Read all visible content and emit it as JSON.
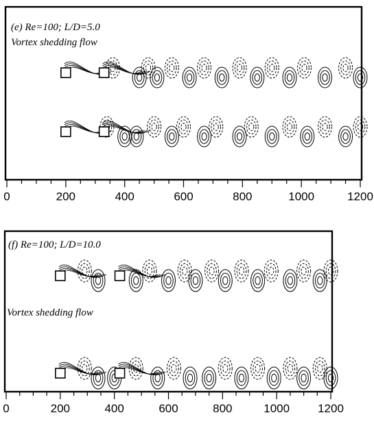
{
  "panels": [
    {
      "id": "e",
      "title": "(e)  Re=100; L/D=5.0",
      "annotation": "Vortex shedding flow",
      "axis": {
        "xlim": [
          0,
          1200
        ],
        "major_ticks": [
          0,
          200,
          400,
          600,
          800,
          1000,
          1200
        ],
        "minor_step": 50
      },
      "cylinders_x": [
        200,
        330
      ],
      "wake_vortices": [
        {
          "row": "upper",
          "x": [
            360,
            450,
            480,
            510,
            560,
            620,
            670,
            730,
            790,
            850,
            900,
            960,
            1010,
            1080,
            1150,
            1200
          ],
          "sign": [
            "-",
            "+",
            "-",
            "+",
            "-",
            "+",
            "-",
            "+",
            "-",
            "+",
            "-",
            "+",
            "-",
            "+",
            "-",
            "+"
          ]
        },
        {
          "row": "lower",
          "x": [
            340,
            400,
            440,
            500,
            560,
            600,
            670,
            710,
            790,
            830,
            900,
            960,
            1020,
            1080,
            1150,
            1200
          ],
          "sign": [
            "-",
            "+",
            "+",
            "-",
            "+",
            "-",
            "+",
            "-",
            "+",
            "-",
            "+",
            "-",
            "+",
            "-",
            "+",
            "-"
          ]
        }
      ]
    },
    {
      "id": "f",
      "title": "(f) Re=100; L/D=10.0",
      "annotation": "Vortex shedding flow",
      "axis": {
        "xlim": [
          0,
          1200
        ],
        "major_ticks": [
          0,
          200,
          400,
          600,
          800,
          1000,
          1200
        ],
        "minor_step": 50
      },
      "cylinders_x": [
        200,
        420
      ],
      "wake_vortices": [
        {
          "row": "upper",
          "x": [
            290,
            340,
            480,
            530,
            600,
            660,
            700,
            760,
            810,
            870,
            930,
            980,
            1050,
            1100,
            1160,
            1200
          ],
          "sign": [
            "-",
            "+",
            "+",
            "-",
            "+",
            "-",
            "+",
            "-",
            "+",
            "-",
            "+",
            "-",
            "+",
            "-",
            "+",
            "-"
          ]
        },
        {
          "row": "lower",
          "x": [
            290,
            340,
            400,
            480,
            560,
            620,
            680,
            750,
            810,
            870,
            930,
            990,
            1050,
            1100,
            1160,
            1200
          ],
          "sign": [
            "-",
            "+",
            "+",
            "-",
            "+",
            "-",
            "+",
            "+",
            "-",
            "+",
            "-",
            "+",
            "-",
            "+",
            "-",
            "+"
          ]
        }
      ]
    }
  ]
}
